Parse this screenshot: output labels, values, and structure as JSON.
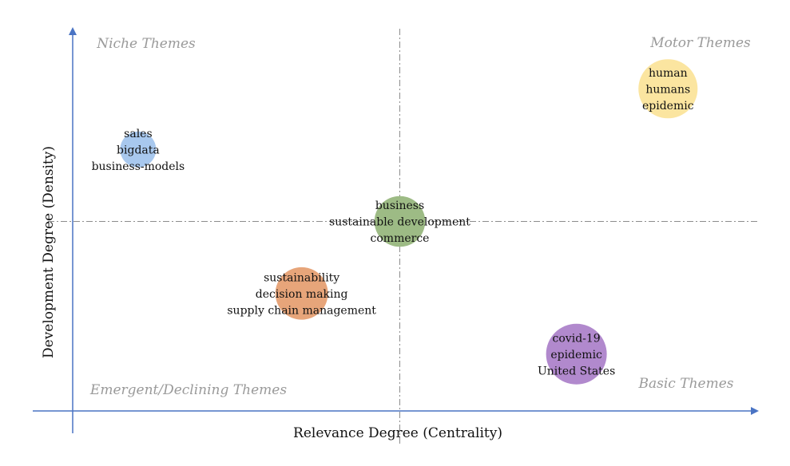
{
  "chart_data": {
    "type": "scatter",
    "title": "",
    "xlabel": "Relevance Degree (Centrality)",
    "ylabel": "Development Degree (Density)",
    "quadrants": {
      "top_left": "Niche Themes",
      "top_right": "Motor Themes",
      "bottom_left": "Emergent/Declining Themes",
      "bottom_right": "Basic Themes"
    },
    "xlim": [
      0,
      1
    ],
    "ylim": [
      0,
      1
    ],
    "divider_x": 0.5,
    "divider_y": 0.5,
    "grid": false,
    "points": [
      {
        "x": 0.1,
        "y": 0.69,
        "size": 0.35,
        "color": "#a8c8ee",
        "labels": [
          "sales",
          "bigdata",
          "business-models"
        ]
      },
      {
        "x": 0.5,
        "y": 0.5,
        "size": 0.7,
        "color": "#9dbb85",
        "labels": [
          "business",
          "sustainable development",
          "commerce"
        ]
      },
      {
        "x": 0.35,
        "y": 0.31,
        "size": 0.75,
        "color": "#e7a57a",
        "labels": [
          "sustainability",
          "decision making",
          "supply chain management"
        ]
      },
      {
        "x": 0.91,
        "y": 0.85,
        "size": 0.95,
        "color": "#fbe5a0",
        "labels": [
          "human",
          "humans",
          "epidemic"
        ]
      },
      {
        "x": 0.77,
        "y": 0.15,
        "size": 1.0,
        "color": "#b189cd",
        "labels": [
          "covid-19",
          "epidemic",
          "United States"
        ]
      }
    ]
  }
}
